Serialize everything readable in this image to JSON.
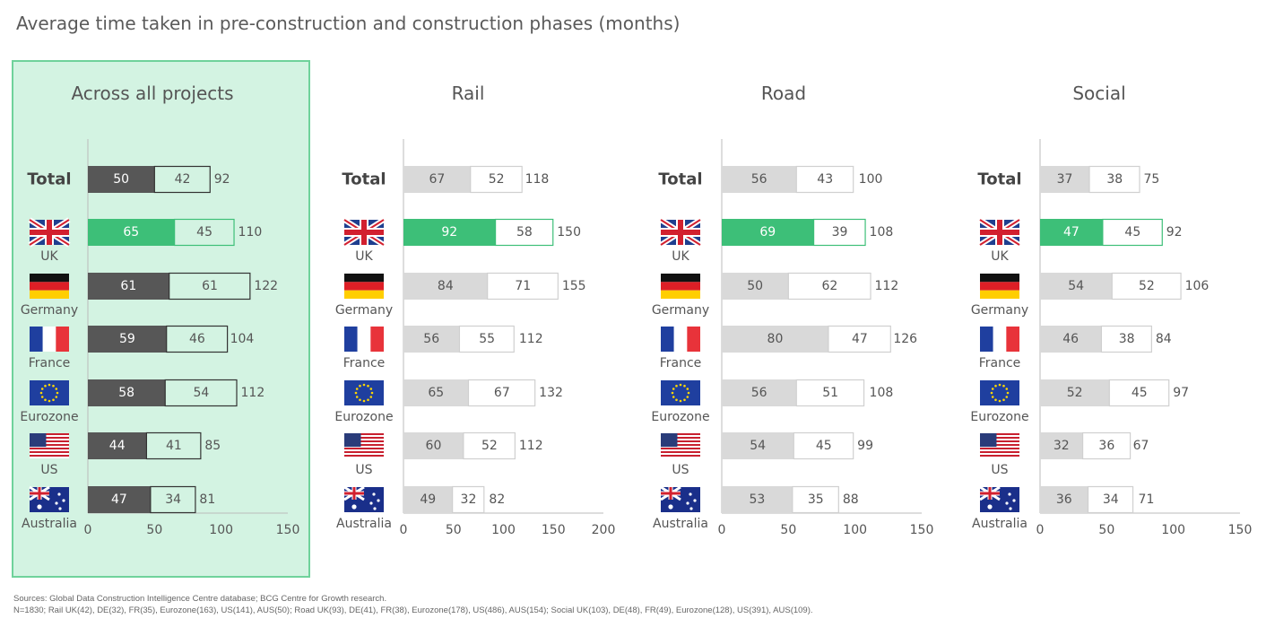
{
  "title": "Average time taken in pre-construction and construction phases (months)",
  "sources": {
    "line1": "Sources: Global Data Construction Intelligence Centre database; BCG Centre for Growth research.",
    "line2": "N=1830; Rail UK(42), DE(32), FR(35), Eurozone(163), US(141), AUS(50); Road UK(93), DE(41), FR(38), Eurozone(178), US(486), AUS(154); Social UK(103), DE(48), FR(49), Eurozone(128), US(391), AUS(109)."
  },
  "colors": {
    "highlight_bg": "#d3f3e2",
    "highlight_border": "#6fd29b",
    "dark": "#575757",
    "green": "#3dbf78",
    "grey": "#d9d9d9",
    "bar_outline": "#d0d0d0"
  },
  "chart_data": [
    {
      "type": "bar",
      "title": "Across all projects",
      "categories": [
        "Total",
        "UK",
        "Germany",
        "France",
        "Eurozone",
        "US",
        "Australia"
      ],
      "series": [
        {
          "values": [
            50,
            65,
            61,
            59,
            58,
            44,
            47
          ]
        },
        {
          "values": [
            42,
            45,
            61,
            46,
            54,
            41,
            34
          ]
        }
      ],
      "totals": [
        92,
        110,
        122,
        104,
        112,
        85,
        81
      ],
      "xlim": [
        0,
        150
      ],
      "xticks": [
        "0",
        "50",
        "100",
        "150"
      ],
      "style": "highlight"
    },
    {
      "type": "bar",
      "title": "Rail",
      "categories": [
        "Total",
        "UK",
        "Germany",
        "France",
        "Eurozone",
        "US",
        "Australia"
      ],
      "series": [
        {
          "values": [
            67,
            92,
            84,
            56,
            65,
            60,
            49
          ]
        },
        {
          "values": [
            52,
            58,
            71,
            55,
            67,
            52,
            32
          ]
        }
      ],
      "totals": [
        118,
        150,
        155,
        112,
        132,
        112,
        82
      ],
      "xlim": [
        0,
        200
      ],
      "xticks": [
        "0",
        "50",
        "100",
        "150",
        "200"
      ],
      "style": "normal"
    },
    {
      "type": "bar",
      "title": "Road",
      "categories": [
        "Total",
        "UK",
        "Germany",
        "France",
        "Eurozone",
        "US",
        "Australia"
      ],
      "series": [
        {
          "values": [
            56,
            69,
            50,
            80,
            56,
            54,
            53
          ]
        },
        {
          "values": [
            43,
            39,
            62,
            47,
            51,
            45,
            35
          ]
        }
      ],
      "totals": [
        100,
        108,
        112,
        126,
        108,
        99,
        88
      ],
      "xlim": [
        0,
        150
      ],
      "xticks": [
        "0",
        "50",
        "100",
        "150"
      ],
      "style": "normal"
    },
    {
      "type": "bar",
      "title": "Social",
      "categories": [
        "Total",
        "UK",
        "Germany",
        "France",
        "Eurozone",
        "US",
        "Australia"
      ],
      "series": [
        {
          "values": [
            37,
            47,
            54,
            46,
            52,
            32,
            36
          ]
        },
        {
          "values": [
            38,
            45,
            52,
            38,
            45,
            36,
            34
          ]
        }
      ],
      "totals": [
        75,
        92,
        106,
        84,
        97,
        67,
        71
      ],
      "xlim": [
        0,
        150
      ],
      "xticks": [
        "0",
        "50",
        "100",
        "150"
      ],
      "style": "normal"
    }
  ]
}
